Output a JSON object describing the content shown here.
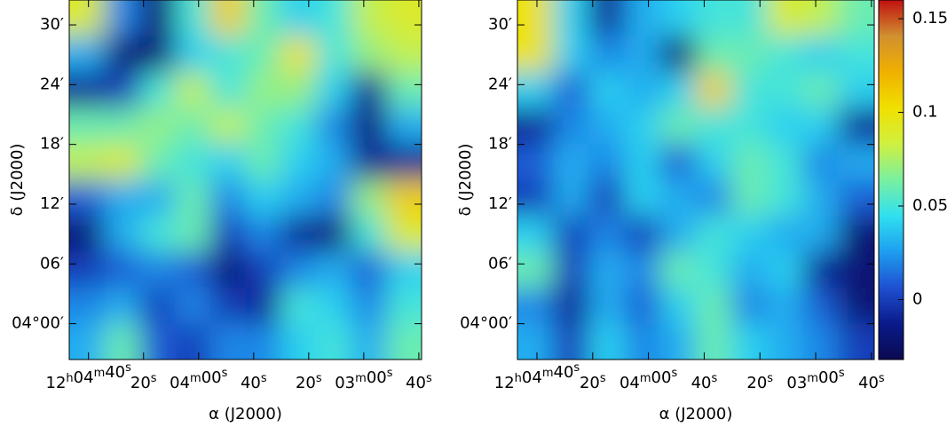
{
  "chart_data": [
    {
      "type": "heatmap",
      "xlabel": "α (J2000)",
      "ylabel": "δ (J2000)",
      "xlim": [
        287,
        159
      ],
      "ylim": [
        -3.6,
        32.5
      ],
      "zlim": [
        -0.032,
        0.16
      ],
      "xticks": [
        {
          "value": 280,
          "label": "12h04m40s"
        },
        {
          "value": 260,
          "label": "20s"
        },
        {
          "value": 240,
          "label": "04m00s"
        },
        {
          "value": 220,
          "label": "40s"
        },
        {
          "value": 200,
          "label": "20s"
        },
        {
          "value": 180,
          "label": "03m00s"
        },
        {
          "value": 160,
          "label": "40s"
        }
      ],
      "yticks": [
        {
          "value": 0,
          "label": "04°00′"
        },
        {
          "value": 6,
          "label": "06′"
        },
        {
          "value": 12,
          "label": "12′"
        },
        {
          "value": 18,
          "label": "18′"
        },
        {
          "value": 24,
          "label": "24′"
        },
        {
          "value": 30,
          "label": "30′"
        }
      ],
      "colors": [
        "#0a0a50",
        "#0a1a8a",
        "#1e50d0",
        "#1e9ef0",
        "#30e0f0",
        "#7af0a0",
        "#d0f040",
        "#f0e000",
        "#f0b000",
        "#d09030",
        "#c01010"
      ],
      "z": [
        [
          0.09,
          0.02,
          -0.02,
          0.05,
          0.11,
          0.06,
          0.04,
          0.05,
          0.08,
          0.09
        ],
        [
          0.03,
          -0.02,
          -0.02,
          0.04,
          0.05,
          0.06,
          0.1,
          0.05,
          0.07,
          0.08
        ],
        [
          -0.01,
          0.0,
          0.05,
          0.08,
          0.05,
          0.07,
          0.07,
          0.04,
          -0.01,
          0.06
        ],
        [
          0.06,
          0.06,
          0.07,
          0.06,
          0.08,
          0.06,
          0.05,
          0.02,
          -0.02,
          0.03
        ],
        [
          0.08,
          0.09,
          0.06,
          0.05,
          0.04,
          0.06,
          0.04,
          0.03,
          -0.01,
          -0.01
        ],
        [
          0.01,
          0.03,
          0.03,
          0.06,
          0.02,
          0.04,
          0.03,
          0.02,
          0.07,
          0.11
        ],
        [
          -0.02,
          0.03,
          0.05,
          0.06,
          0.0,
          0.02,
          -0.01,
          -0.02,
          0.05,
          0.09
        ],
        [
          0.0,
          0.01,
          0.02,
          0.01,
          -0.02,
          0.0,
          0.02,
          0.03,
          0.01,
          0.04
        ],
        [
          0.02,
          0.03,
          0.0,
          0.02,
          0.0,
          -0.01,
          0.05,
          0.04,
          0.02,
          0.05
        ],
        [
          0.03,
          0.06,
          0.01,
          0.0,
          0.02,
          0.02,
          0.04,
          0.05,
          0.03,
          0.06
        ]
      ]
    },
    {
      "type": "heatmap",
      "xlabel": "α (J2000)",
      "ylabel": "δ (J2000)",
      "xlim": [
        287,
        159
      ],
      "ylim": [
        -3.6,
        32.5
      ],
      "zlim": [
        -0.032,
        0.16
      ],
      "xticks": [
        {
          "value": 280,
          "label": "12h04m40s"
        },
        {
          "value": 260,
          "label": "20s"
        },
        {
          "value": 240,
          "label": "04m00s"
        },
        {
          "value": 220,
          "label": "40s"
        },
        {
          "value": 200,
          "label": "20s"
        },
        {
          "value": 180,
          "label": "03m00s"
        },
        {
          "value": 160,
          "label": "40s"
        }
      ],
      "yticks": [
        {
          "value": 0,
          "label": "04°00′"
        },
        {
          "value": 6,
          "label": "06′"
        },
        {
          "value": 12,
          "label": "12′"
        },
        {
          "value": 18,
          "label": "18′"
        },
        {
          "value": 24,
          "label": "24′"
        },
        {
          "value": 30,
          "label": "30′"
        }
      ],
      "colors": [
        "#0a0a50",
        "#0a1a8a",
        "#1e50d0",
        "#1e9ef0",
        "#30e0f0",
        "#7af0a0",
        "#d0f040",
        "#f0e000",
        "#f0b000",
        "#d09030",
        "#c01010"
      ],
      "zticks": [
        0,
        0.05,
        0.1,
        0.15
      ],
      "z": [
        [
          0.1,
          0.04,
          -0.01,
          0.03,
          0.04,
          0.05,
          0.05,
          0.09,
          0.08,
          0.06
        ],
        [
          0.1,
          0.04,
          0.02,
          0.03,
          -0.02,
          0.06,
          0.06,
          0.05,
          0.04,
          0.05
        ],
        [
          0.04,
          0.01,
          0.04,
          0.03,
          0.04,
          0.11,
          0.05,
          0.05,
          0.06,
          0.04
        ],
        [
          -0.01,
          0.02,
          0.03,
          0.04,
          0.06,
          0.05,
          0.05,
          0.04,
          0.04,
          -0.01
        ],
        [
          0.01,
          0.03,
          0.02,
          0.04,
          0.01,
          0.04,
          0.06,
          0.05,
          0.02,
          0.03
        ],
        [
          0.0,
          0.03,
          0.0,
          0.04,
          0.03,
          0.02,
          0.06,
          0.05,
          0.03,
          0.01
        ],
        [
          0.04,
          0.0,
          0.02,
          0.0,
          0.03,
          0.05,
          0.04,
          0.03,
          0.03,
          -0.02
        ],
        [
          0.06,
          0.0,
          0.03,
          0.02,
          0.06,
          0.05,
          0.03,
          0.04,
          -0.01,
          -0.02
        ],
        [
          0.02,
          -0.01,
          0.03,
          0.01,
          0.04,
          0.06,
          0.02,
          0.03,
          0.01,
          -0.02
        ],
        [
          0.03,
          0.0,
          0.04,
          0.02,
          0.03,
          0.06,
          0.04,
          0.03,
          0.02,
          0.0
        ]
      ]
    }
  ]
}
